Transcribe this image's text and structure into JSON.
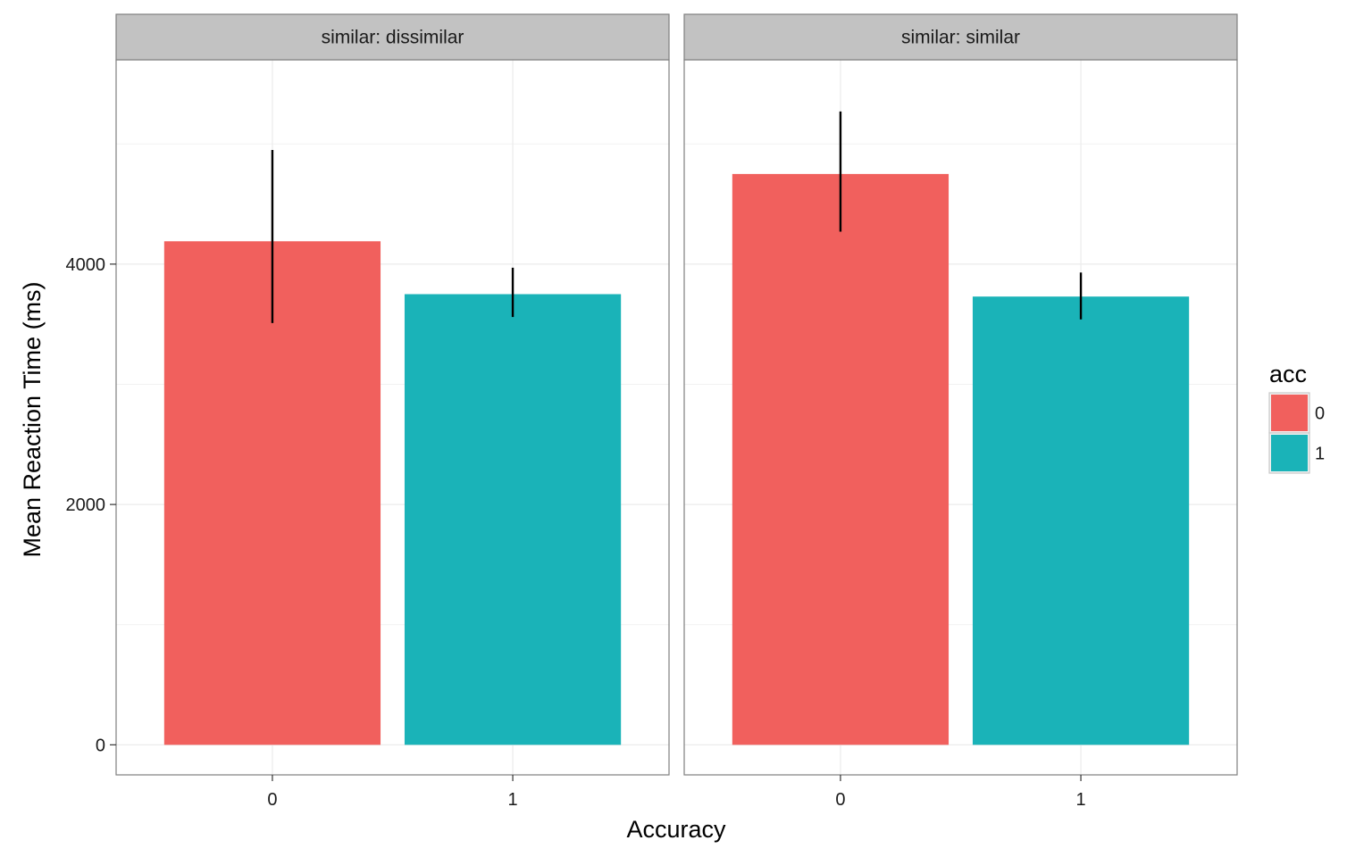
{
  "chart_data": {
    "type": "bar",
    "xlabel": "Accuracy",
    "ylabel": "Mean Reaction Time (ms)",
    "ylim": [
      -250,
      5700
    ],
    "y_ticks": [
      0,
      2000,
      4000
    ],
    "y_minor_ticks": [
      1000,
      3000,
      5000
    ],
    "categories": [
      "0",
      "1"
    ],
    "grid": true,
    "legend": {
      "title": "acc",
      "position": "right",
      "entries": [
        {
          "label": "0",
          "color": "#F1605D"
        },
        {
          "label": "1",
          "color": "#1AB3B8"
        }
      ]
    },
    "facets": [
      {
        "strip": "similar: dissimilar",
        "bars": [
          {
            "category": "0",
            "value": 4190,
            "err_low": 3510,
            "err_high": 4950
          },
          {
            "category": "1",
            "value": 3750,
            "err_low": 3560,
            "err_high": 3970
          }
        ]
      },
      {
        "strip": "similar: similar",
        "bars": [
          {
            "category": "0",
            "value": 4750,
            "err_low": 4270,
            "err_high": 5270
          },
          {
            "category": "1",
            "value": 3730,
            "err_low": 3540,
            "err_high": 3930
          }
        ]
      }
    ]
  }
}
